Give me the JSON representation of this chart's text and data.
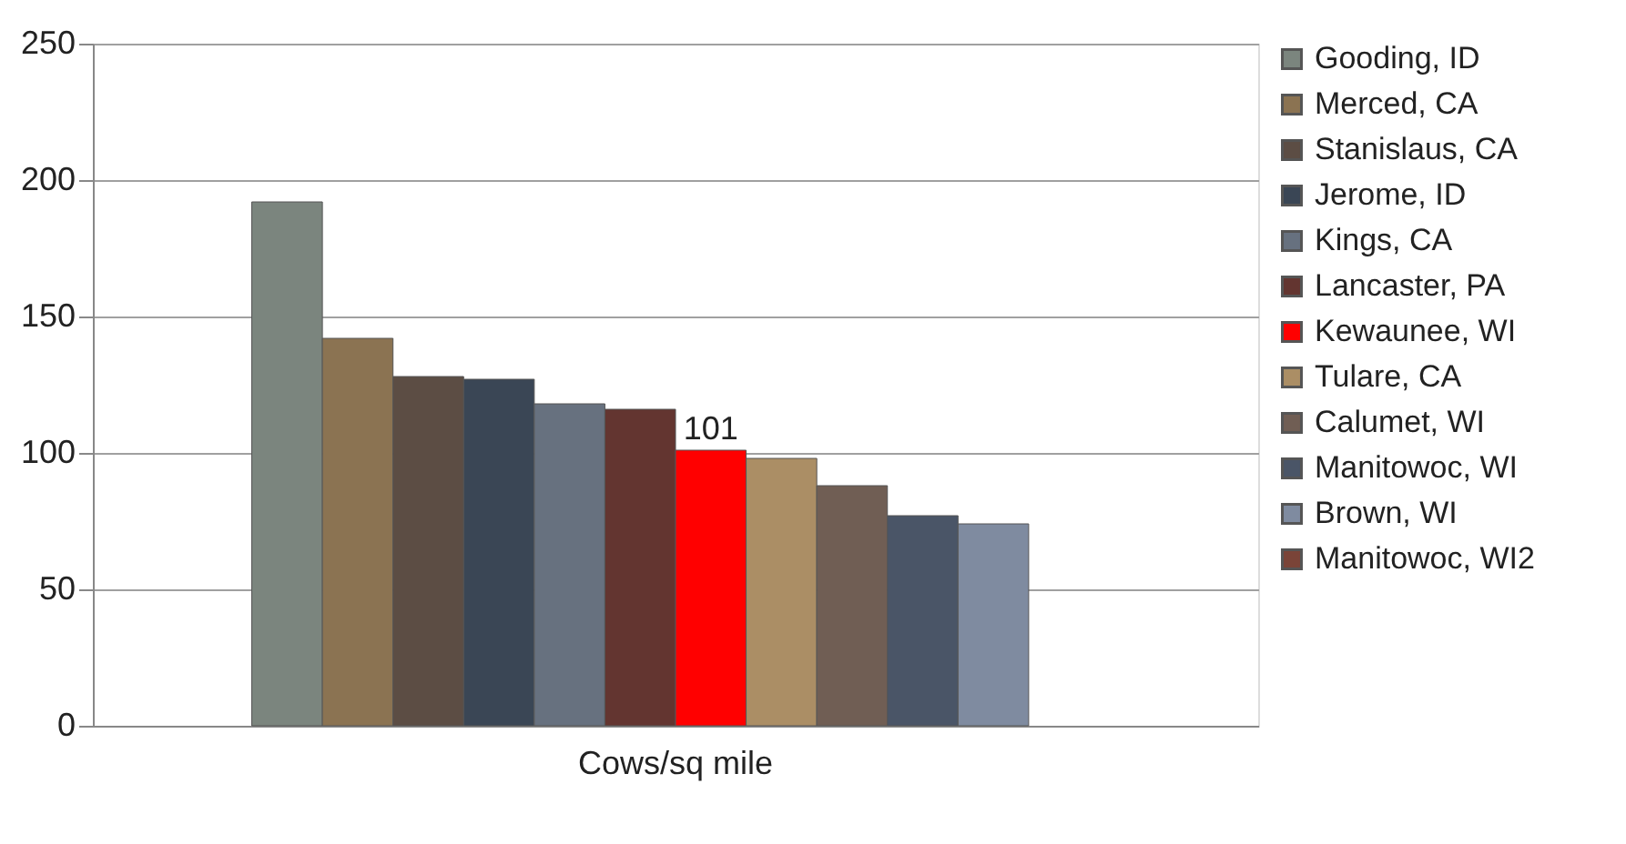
{
  "chart_data": {
    "type": "bar",
    "categories": [
      "Cows/sq mile"
    ],
    "series": [
      {
        "name": "Gooding, ID",
        "color": "#7b857e",
        "values": [
          192
        ]
      },
      {
        "name": "Merced, CA",
        "color": "#8b7352",
        "values": [
          142
        ]
      },
      {
        "name": "Stanislaus, CA",
        "color": "#5c4d44",
        "values": [
          128
        ]
      },
      {
        "name": "Jerome, ID",
        "color": "#3a4655",
        "values": [
          127
        ]
      },
      {
        "name": "Kings, CA",
        "color": "#67717f",
        "values": [
          118
        ]
      },
      {
        "name": "Lancaster, PA",
        "color": "#633530",
        "values": [
          116
        ]
      },
      {
        "name": "Kewaunee, WI",
        "color": "#ff0000",
        "values": [
          101
        ],
        "value_labels": [
          "101"
        ]
      },
      {
        "name": "Tulare, CA",
        "color": "#ab8e65",
        "values": [
          98
        ]
      },
      {
        "name": "Calumet, WI",
        "color": "#705e54",
        "values": [
          88
        ]
      },
      {
        "name": "Manitowoc, WI",
        "color": "#4a5567",
        "values": [
          77
        ]
      },
      {
        "name": "Brown, WI",
        "color": "#7f8ba0",
        "values": [
          74
        ]
      },
      {
        "name": "Manitowoc, WI2",
        "color": "#7a4438",
        "values": [
          null
        ]
      }
    ],
    "ylim": [
      0,
      250
    ],
    "yticks": [
      0,
      50,
      100,
      150,
      200,
      250
    ],
    "grid": "y",
    "legend": "right"
  }
}
